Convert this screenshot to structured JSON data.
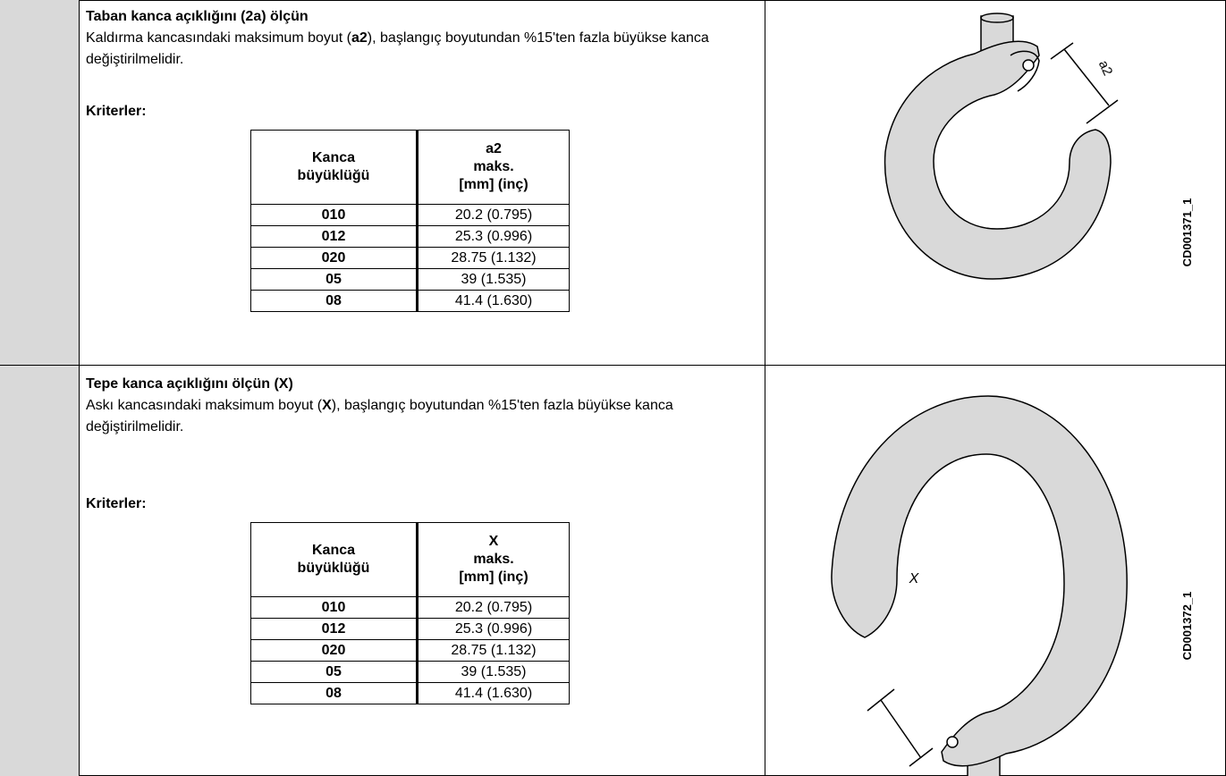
{
  "sections": [
    {
      "title": "Taban kanca açıklığını (2a) ölçün",
      "text": [
        "Kaldırma kancasındaki maksimum boyut (",
        "a2",
        "), başlangıç boyutundan %15'ten fazla büyükse kanca değiştirilmelidir."
      ],
      "criteria_label": "Kriterler:",
      "table": {
        "header": [
          [
            "Kanca",
            "büyüklüğü"
          ],
          [
            "a2",
            "maks.",
            "[mm] (inç)"
          ]
        ],
        "rows": [
          [
            "010",
            "20.2 (0.795)"
          ],
          [
            "012",
            "25.3 (0.996)"
          ],
          [
            "020",
            "28.75 (1.132)"
          ],
          [
            "05",
            "39 (1.535)"
          ],
          [
            "08",
            "41.4 (1.630)"
          ]
        ]
      },
      "figure": {
        "dimension_label": "a2",
        "code": "CD001371_1"
      }
    },
    {
      "title": "Tepe kanca açıklığını ölçün (X)",
      "text": [
        "Askı kancasındaki maksimum boyut (",
        "X",
        "), başlangıç boyutundan %15'ten fazla büyükse kanca değiştirilmelidir."
      ],
      "criteria_label": "Kriterler:",
      "table": {
        "header": [
          [
            "Kanca",
            "büyüklüğü"
          ],
          [
            "X",
            "maks.",
            "[mm] (inç)"
          ]
        ],
        "rows": [
          [
            "010",
            "20.2 (0.795)"
          ],
          [
            "012",
            "25.3 (0.996)"
          ],
          [
            "020",
            "28.75 (1.132)"
          ],
          [
            "05",
            "39 (1.535)"
          ],
          [
            "08",
            "41.4 (1.630)"
          ]
        ]
      },
      "figure": {
        "dimension_label": "X",
        "code": "CD001372_1"
      }
    }
  ]
}
